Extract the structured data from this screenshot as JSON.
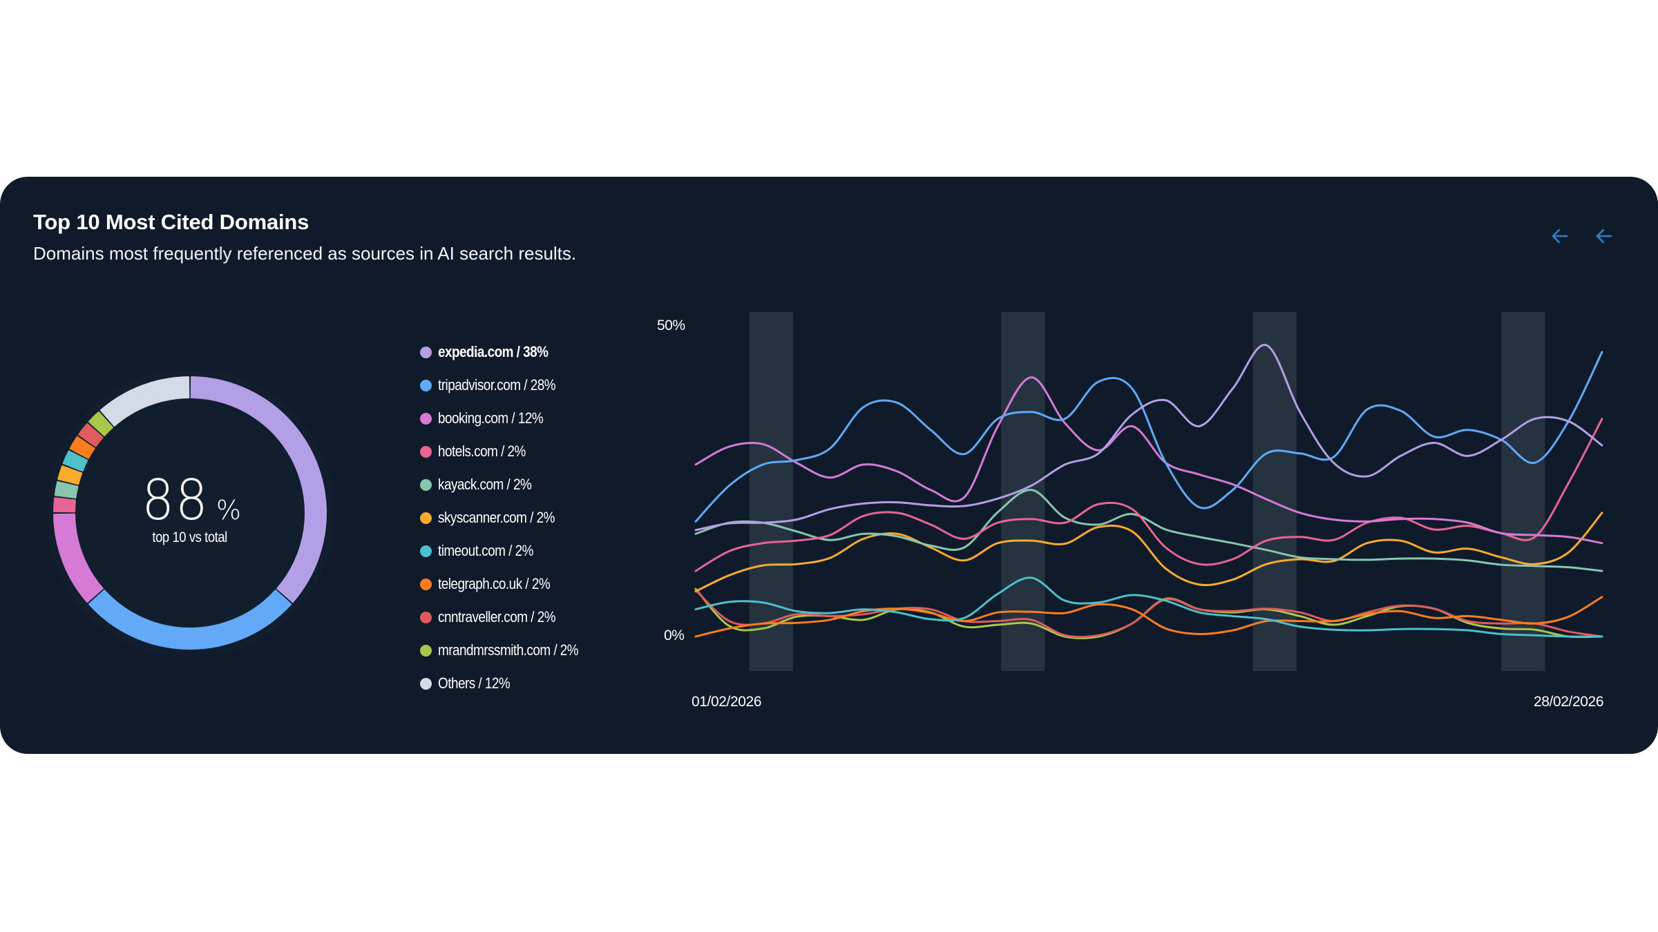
{
  "card": {
    "title": "Top 10 Most Cited Domains",
    "subtitle": "Domains most frequently referenced as sources in AI search results.",
    "nav": {
      "prev_icon": "arrow-left-icon",
      "next_icon": "arrow-left-icon",
      "accent": "#2f7bc4"
    }
  },
  "donut": {
    "value": "88",
    "unit": "%",
    "label": "top 10 vs total"
  },
  "legend": [
    {
      "name": "expedia.com",
      "share": 38,
      "label": "expedia.com / 38%",
      "color": "#b29fe6",
      "active": true
    },
    {
      "name": "tripadvisor.com",
      "share": 28,
      "label": "tripadvisor.com / 28%",
      "color": "#62aaf7"
    },
    {
      "name": "booking.com",
      "share": 12,
      "label": "booking.com / 12%",
      "color": "#d57bd6"
    },
    {
      "name": "hotels.com",
      "share": 2,
      "label": "hotels.com / 2%",
      "color": "#e86593"
    },
    {
      "name": "kayack.com",
      "share": 2,
      "label": "kayack.com / 2%",
      "color": "#88c6b0"
    },
    {
      "name": "skyscanner.com",
      "share": 2,
      "label": "skyscanner.com / 2%",
      "color": "#fbab2e"
    },
    {
      "name": "timeout.com",
      "share": 2,
      "label": "timeout.com / 2%",
      "color": "#4fbfca"
    },
    {
      "name": "telegraph.co.uk",
      "share": 2,
      "label": "telegraph.co.uk / 2%",
      "color": "#fb7d1e"
    },
    {
      "name": "cnntraveller.com",
      "share": 2,
      "label": "cnntraveller.com / 2%",
      "color": "#e05b5e"
    },
    {
      "name": "mrandmrssmith.com",
      "share": 2,
      "label": "mrandmrssmith.com / 2%",
      "color": "#a9c84b"
    },
    {
      "name": "Others",
      "share": 12,
      "label": "Others / 12%",
      "color": "#d3dbe6"
    }
  ],
  "chart_data": [
    {
      "type": "pie",
      "variant": "donut",
      "title": "Top 10 Most Cited Domains",
      "center_text": "88% top 10 vs total",
      "categories": [
        "expedia.com",
        "tripadvisor.com",
        "booking.com",
        "hotels.com",
        "kayack.com",
        "skyscanner.com",
        "timeout.com",
        "telegraph.co.uk",
        "cnntraveller.com",
        "mrandmrssmith.com",
        "Others"
      ],
      "values": [
        38,
        28,
        12,
        2,
        2,
        2,
        2,
        2,
        2,
        2,
        12
      ],
      "legend_placement": "right"
    },
    {
      "type": "line",
      "x_start_label": "01/02/2026",
      "x_end_label": "28/02/2026",
      "x": [
        1,
        2,
        3,
        4,
        5,
        6,
        7,
        8,
        9,
        10,
        11,
        12,
        13,
        14,
        15,
        16,
        17,
        18,
        19,
        20,
        21,
        22,
        23,
        24,
        25,
        26,
        27,
        28
      ],
      "ylim": [
        0,
        50
      ],
      "y_ticks": [
        "50%",
        "0%"
      ],
      "grid": false,
      "weekend_bands": [
        [
          2.6,
          3.9
        ],
        [
          10.1,
          11.4
        ],
        [
          17.6,
          18.9
        ],
        [
          25.0,
          26.3
        ]
      ],
      "series": [
        {
          "name": "expedia.com",
          "color": "#b29fe6",
          "values": [
            17.2,
            18.3,
            18.4,
            18.9,
            20.6,
            21.5,
            21.7,
            21.2,
            21.1,
            22.3,
            24.4,
            27.8,
            29.6,
            35.9,
            38.2,
            34.0,
            40.1,
            47.1,
            36.3,
            28.1,
            25.9,
            29.2,
            31.3,
            29.2,
            31.8,
            35.2,
            34.8,
            30.9
          ]
        },
        {
          "name": "tripadvisor.com",
          "color": "#62aaf7",
          "values": [
            18.6,
            24.4,
            27.8,
            28.5,
            30.4,
            37.1,
            37.8,
            33.4,
            29.5,
            35.2,
            36.3,
            35.2,
            41.2,
            40.1,
            28.1,
            20.9,
            23.7,
            29.6,
            29.6,
            29.0,
            36.7,
            36.5,
            32.3,
            33.4,
            31.8,
            28.1,
            34.8,
            46.0
          ]
        },
        {
          "name": "booking.com",
          "color": "#d57bd6",
          "values": [
            27.8,
            30.7,
            31.1,
            28.1,
            25.7,
            27.8,
            26.7,
            23.7,
            22.5,
            34.0,
            41.9,
            34.5,
            30.1,
            34.0,
            28.1,
            26.2,
            24.6,
            22.2,
            20.0,
            18.9,
            18.6,
            19.0,
            19.0,
            18.4,
            16.7,
            16.4,
            16.1,
            15.1
          ]
        },
        {
          "name": "hotels.com",
          "color": "#e86593",
          "values": [
            10.6,
            13.8,
            15.1,
            15.5,
            16.4,
            19.5,
            20.0,
            18.1,
            15.8,
            18.4,
            19.0,
            18.4,
            21.4,
            20.6,
            14.4,
            11.7,
            12.5,
            15.5,
            16.1,
            15.6,
            18.4,
            19.2,
            17.3,
            17.9,
            16.7,
            16.1,
            24.8,
            35.2
          ]
        },
        {
          "name": "kayack.com",
          "color": "#88c6b0",
          "values": [
            16.6,
            18.4,
            18.4,
            17.0,
            15.6,
            16.6,
            16.2,
            14.7,
            14.4,
            20.1,
            23.7,
            19.2,
            18.1,
            19.8,
            17.3,
            16.1,
            15.1,
            14.0,
            12.8,
            12.5,
            12.4,
            12.6,
            12.6,
            12.3,
            11.6,
            11.4,
            11.2,
            10.6
          ]
        },
        {
          "name": "skyscanner.com",
          "color": "#fbab2e",
          "values": [
            7.3,
            9.9,
            11.5,
            11.7,
            12.7,
            15.8,
            16.6,
            14.4,
            12.3,
            15.1,
            15.5,
            15.0,
            17.7,
            17.0,
            11.0,
            8.4,
            9.2,
            11.7,
            12.5,
            12.2,
            15.1,
            15.5,
            13.6,
            14.2,
            12.8,
            11.7,
            13.6,
            20.0
          ]
        },
        {
          "name": "timeout.com",
          "color": "#4fbfca",
          "values": [
            4.4,
            5.6,
            5.5,
            4.1,
            3.8,
            4.4,
            3.9,
            2.8,
            3.0,
            6.9,
            9.5,
            5.8,
            5.5,
            6.7,
            5.8,
            3.9,
            3.3,
            2.8,
            1.6,
            1.1,
            1.0,
            1.2,
            1.2,
            1.0,
            0.4,
            0.2,
            0.0,
            0.0
          ]
        },
        {
          "name": "telegraph.co.uk",
          "color": "#fb7d1e",
          "values": [
            0.0,
            1.3,
            2.1,
            2.2,
            2.7,
            4.1,
            4.5,
            3.8,
            2.5,
            3.9,
            4.0,
            3.8,
            5.2,
            4.4,
            1.3,
            0.4,
            1.0,
            2.5,
            2.5,
            2.5,
            3.6,
            4.1,
            3.0,
            3.3,
            2.7,
            2.1,
            3.2,
            6.4
          ]
        },
        {
          "name": "cnntraveller.com",
          "color": "#e05b5e",
          "values": [
            7.5,
            2.5,
            2.1,
            3.6,
            3.3,
            3.6,
            4.5,
            4.4,
            2.5,
            2.5,
            2.7,
            0.2,
            0.2,
            2.1,
            6.0,
            4.4,
            4.1,
            4.5,
            3.9,
            2.5,
            3.9,
            5.0,
            4.5,
            2.5,
            2.1,
            2.1,
            0.8,
            0.0
          ]
        },
        {
          "name": "mrandmrssmith.com",
          "color": "#a9c84b",
          "values": [
            7.7,
            1.7,
            1.3,
            3.2,
            3.3,
            2.7,
            4.4,
            3.9,
            1.6,
            1.9,
            2.1,
            0.0,
            0.0,
            2.1,
            6.1,
            4.4,
            3.9,
            4.4,
            3.3,
            1.9,
            3.3,
            4.9,
            4.5,
            2.2,
            1.3,
            1.1,
            0.0,
            0.0
          ]
        }
      ]
    }
  ]
}
